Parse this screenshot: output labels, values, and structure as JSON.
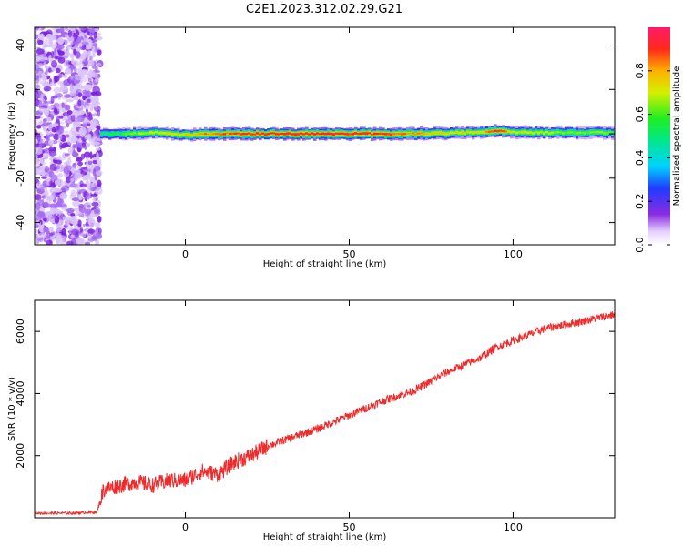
{
  "title": "C2E1.2023.312.02.29.G21",
  "chart_data": [
    {
      "type": "heatmap",
      "xlabel": "Height of straight line (km)",
      "ylabel": "Frequency (Hz)",
      "xlim": [
        -46,
        131
      ],
      "ylim": [
        -50,
        48
      ],
      "xticks": [
        0,
        50,
        100
      ],
      "yticks": [
        40,
        20,
        0,
        -20,
        -40
      ],
      "noise_region_x": [
        -46,
        -26
      ],
      "signal_x": [
        -26,
        -20,
        -10,
        0,
        10,
        20,
        40,
        60,
        70,
        80,
        90,
        95,
        100,
        110,
        120,
        131
      ],
      "signal_center_hz": [
        0,
        0,
        0.5,
        -0.5,
        0,
        0,
        0,
        0,
        0,
        0.3,
        0.8,
        1.2,
        0.6,
        0.5,
        0.5,
        0.5
      ],
      "signal_peak_amplitude": [
        0.55,
        0.6,
        0.75,
        0.8,
        0.9,
        0.95,
        0.98,
        0.95,
        0.85,
        0.75,
        0.8,
        0.95,
        0.75,
        0.7,
        0.65,
        0.65
      ],
      "colorbar": {
        "label": "Normalized spectral amplitude",
        "ticks": [
          "0.0",
          "0.2",
          "0.4",
          "0.6",
          "0.8"
        ],
        "range": [
          0,
          1
        ]
      }
    },
    {
      "type": "line",
      "xlabel": "Height of straight line (km)",
      "ylabel": "SNR (10 * v/v)",
      "xlim": [
        -46,
        131
      ],
      "ylim": [
        0,
        7000
      ],
      "xticks": [
        0,
        50,
        100
      ],
      "yticks": [
        2000,
        4000,
        6000
      ],
      "series": [
        {
          "color": "#ee2a2a",
          "x": [
            -46,
            -35,
            -27,
            -25,
            -20,
            -15,
            -10,
            -5,
            0,
            5,
            10,
            15,
            20,
            25,
            30,
            40,
            50,
            60,
            70,
            80,
            90,
            95,
            100,
            105,
            110,
            120,
            131
          ],
          "y": [
            150,
            150,
            180,
            900,
            1050,
            1150,
            1050,
            1200,
            1200,
            1500,
            1400,
            1800,
            2000,
            2300,
            2500,
            2850,
            3300,
            3750,
            4100,
            4700,
            5150,
            5500,
            5700,
            5900,
            6100,
            6300,
            6550
          ]
        }
      ]
    }
  ]
}
